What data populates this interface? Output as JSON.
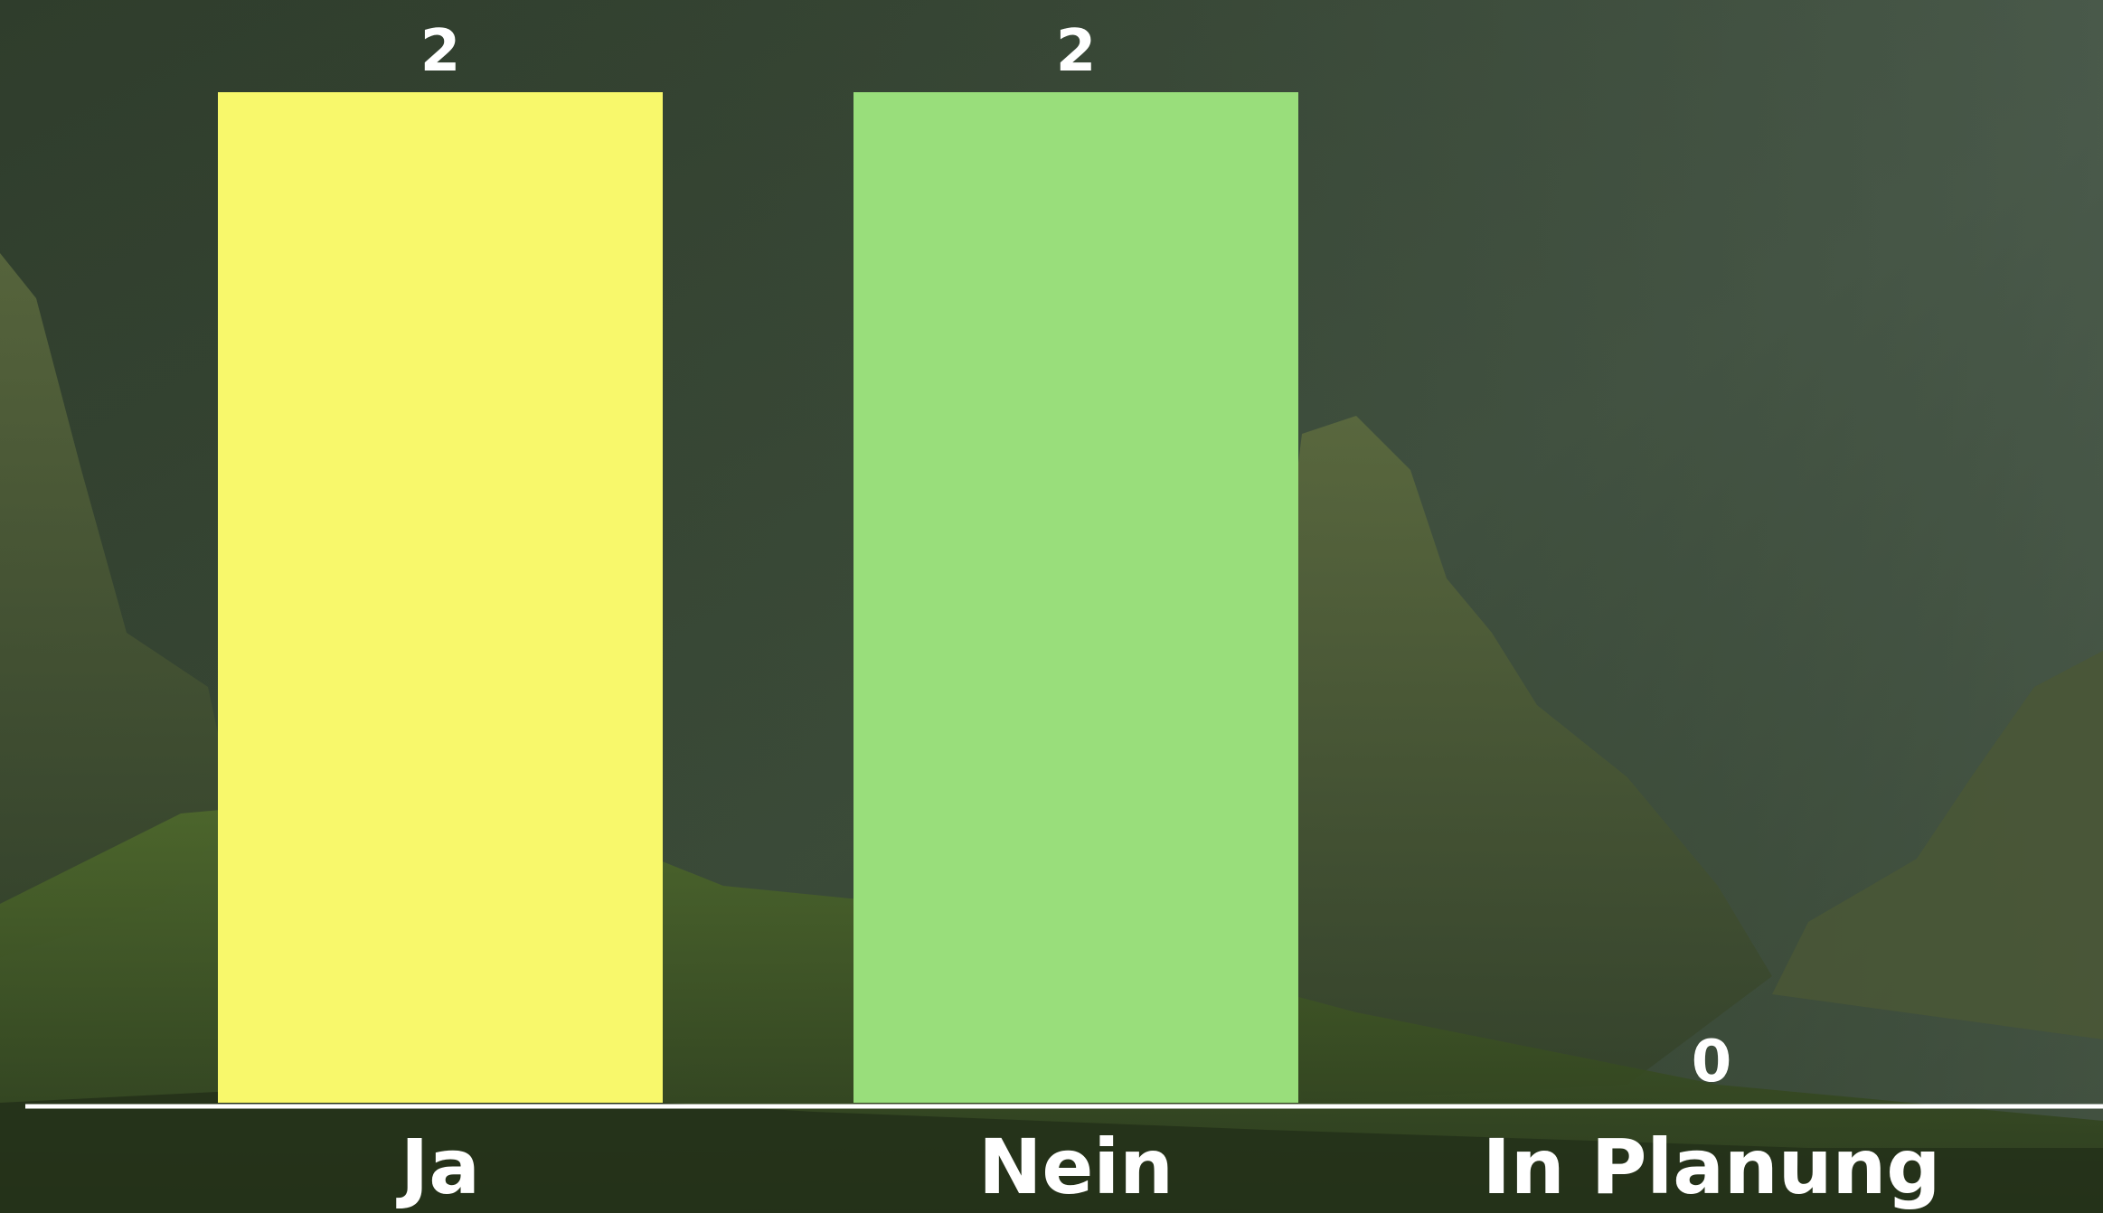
{
  "chart_data": {
    "type": "bar",
    "categories": [
      "Ja",
      "Nein",
      "In Planung"
    ],
    "values": [
      2,
      2,
      0
    ],
    "colors": [
      "#f8f86b",
      "#99de7b",
      "#7fbf5f"
    ],
    "ylim": [
      0,
      2
    ],
    "title": "",
    "xlabel": "",
    "ylabel": "",
    "grid": false,
    "legend": "none"
  },
  "background": {
    "description_icon": "mountain-forest-photo",
    "tint": "#2c3b2c"
  }
}
